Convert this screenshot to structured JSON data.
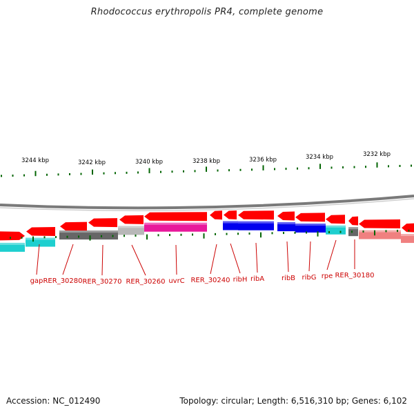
{
  "title": "Rhodococcus erythropolis PR4, complete genome",
  "footer": {
    "accession": "Accession: NC_012490",
    "summary": "Topology: circular; Length: 6,516,310 bp; Genes: 6,102"
  },
  "colors": {
    "cds_forward": "#ff0000",
    "cds_reverse_strip": "#ff0000",
    "backbone": "#7a7a7a",
    "tick": "#006400",
    "gene_label": "#cc0000",
    "kbp_label": "#000000",
    "cyan": "#1ecfcf",
    "dark_grey": "#666666",
    "light_grey": "#b8b8b8",
    "magenta": "#e8189b",
    "blue": "#0000ee",
    "pink": "#f08080"
  },
  "kbp_labels": [
    "3244 kbp",
    "3242 kbp",
    "3240 kbp",
    "3238 kbp",
    "3236 kbp",
    "3234 kbp",
    "3232 kbp"
  ],
  "gene_labels": [
    "gap",
    "RER_30280",
    "RER_30270",
    "RER_30260",
    "uvrC",
    "RER_30240",
    "ribH",
    "ribA",
    "ribB",
    "ribG",
    "rpe",
    "RER_30180"
  ]
}
